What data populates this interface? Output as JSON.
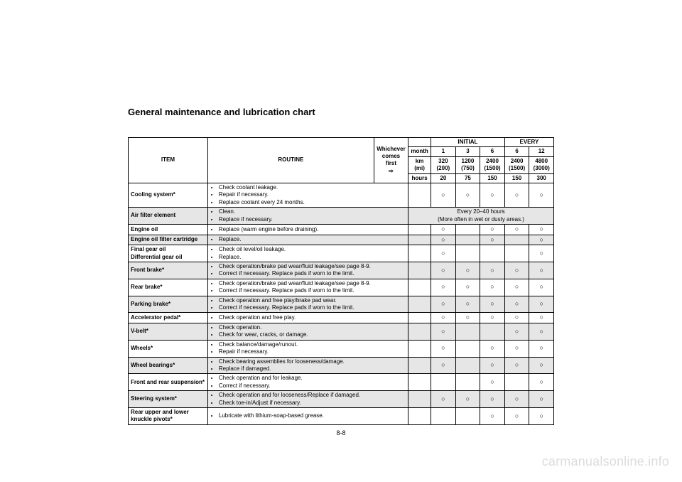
{
  "title": "General maintenance and lubrication chart",
  "pagenum": "8-8",
  "watermark": "carmanualsonline.info",
  "header": {
    "item": "ITEM",
    "routine": "ROUTINE",
    "whichever": "Whichever comes first",
    "whichever_arrow": "⇨",
    "initial": "INITIAL",
    "every": "EVERY",
    "month_label": "month",
    "months": [
      "1",
      "3",
      "6",
      "6",
      "12"
    ],
    "km_label": "km\n(mi)",
    "km": [
      "320\n(200)",
      "1200\n(750)",
      "2400\n(1500)",
      "2400\n(1500)",
      "4800\n(3000)"
    ],
    "hours_label": "hours",
    "hours": [
      "20",
      "75",
      "150",
      "150",
      "300"
    ]
  },
  "special_row_note": "Every 20–40 hours\n(More often in wet or dusty areas.)",
  "mark": "○",
  "rows": [
    {
      "item": "Cooling system*",
      "gray": false,
      "routine": [
        "Check coolant leakage.",
        "Repair if necessary.",
        "Replace coolant every 24 months."
      ],
      "marks": [
        true,
        true,
        true,
        true,
        true
      ]
    },
    {
      "item": "Air filter element",
      "gray": true,
      "routine": [
        "Clean.",
        "Replace if necessary."
      ],
      "special": true
    },
    {
      "item": "Engine oil",
      "gray": false,
      "routine": [
        "Replace (warm engine before draining)."
      ],
      "marks": [
        true,
        false,
        true,
        true,
        true
      ]
    },
    {
      "item": "Engine oil filter cartridge",
      "gray": true,
      "routine": [
        "Replace."
      ],
      "marks": [
        true,
        false,
        true,
        false,
        true
      ]
    },
    {
      "item": "Final gear oil\nDifferential gear oil",
      "gray": false,
      "routine": [
        "Check oil level/oil leakage.",
        "Replace."
      ],
      "marks": [
        true,
        false,
        false,
        false,
        true
      ]
    },
    {
      "item": "Front brake*",
      "gray": true,
      "routine": [
        "Check operation/brake pad wear/fluid leakage/see page 8-9.",
        "Correct if necessary. Replace pads if worn to the limit."
      ],
      "marks": [
        true,
        true,
        true,
        true,
        true
      ]
    },
    {
      "item": "Rear brake*",
      "gray": false,
      "routine": [
        "Check operation/brake pad wear/fluid leakage/see page 8-9.",
        "Correct if necessary. Replace pads if worn to the limit."
      ],
      "marks": [
        true,
        true,
        true,
        true,
        true
      ]
    },
    {
      "item": "Parking brake*",
      "gray": true,
      "routine": [
        "Check operation and free play/brake pad wear.",
        "Correct if necessary. Replace pads if worn to the limit."
      ],
      "marks": [
        true,
        true,
        true,
        true,
        true
      ]
    },
    {
      "item": "Accelerator pedal*",
      "gray": false,
      "routine": [
        "Check operation and free play."
      ],
      "marks": [
        true,
        true,
        true,
        true,
        true
      ]
    },
    {
      "item": "V-belt*",
      "gray": true,
      "routine": [
        "Check operation.",
        "Check for wear, cracks, or damage."
      ],
      "marks": [
        true,
        false,
        false,
        true,
        true
      ]
    },
    {
      "item": "Wheels*",
      "gray": false,
      "routine": [
        "Check balance/damage/runout.",
        "Repair if necessary."
      ],
      "marks": [
        true,
        false,
        true,
        true,
        true
      ]
    },
    {
      "item": "Wheel bearings*",
      "gray": true,
      "routine": [
        "Check bearing assemblies for looseness/damage.",
        "Replace if damaged."
      ],
      "marks": [
        true,
        false,
        true,
        true,
        true
      ]
    },
    {
      "item": "Front and rear suspension*",
      "gray": false,
      "routine": [
        "Check operation and for leakage.",
        "Correct if necessary."
      ],
      "marks": [
        false,
        false,
        true,
        false,
        true
      ]
    },
    {
      "item": "Steering system*",
      "gray": true,
      "routine": [
        "Check operation and for looseness/Replace if damaged.",
        "Check toe-in/Adjust if necessary."
      ],
      "marks": [
        true,
        true,
        true,
        true,
        true
      ]
    },
    {
      "item": "Rear upper and lower knuckle pivots*",
      "gray": false,
      "routine": [
        "Lubricate with lithium-soap-based grease."
      ],
      "marks": [
        false,
        false,
        true,
        true,
        true
      ]
    }
  ]
}
